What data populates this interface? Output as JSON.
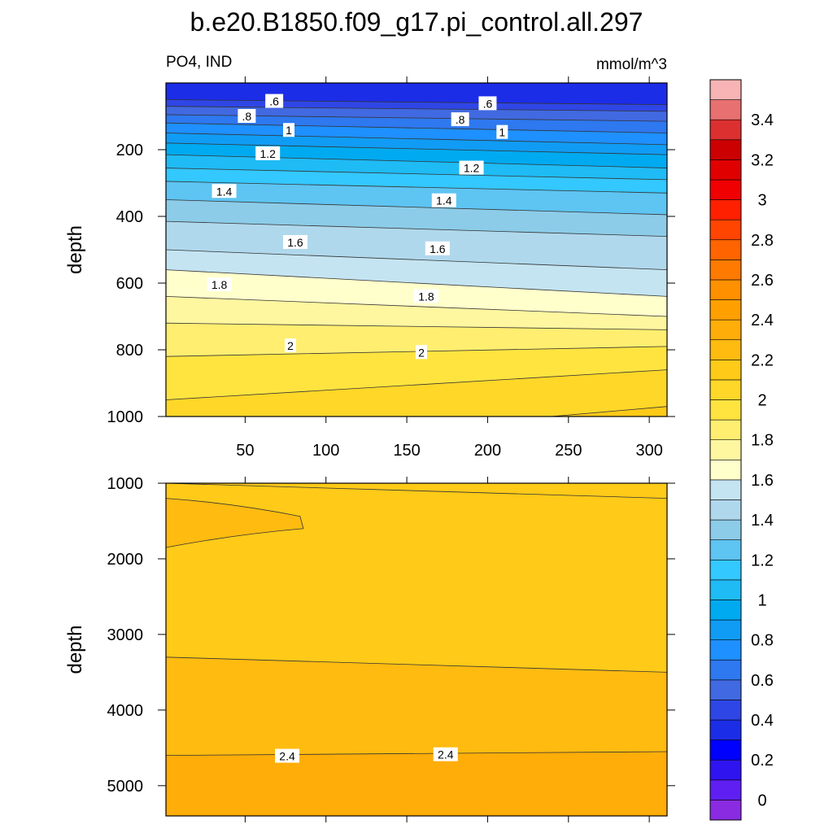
{
  "title": "b.e20.B1850.f09_g17.pi_control.all.297",
  "subtitle_left": "PO4, IND",
  "subtitle_right": "mmol/m^3",
  "colorbar_colors": [
    "#8a2be2",
    "#5f1ff2",
    "#2f14f0",
    "#0000ff",
    "#1c2de8",
    "#2f46e6",
    "#4169e1",
    "#2e78f0",
    "#1e90ff",
    "#109cf5",
    "#00aaf0",
    "#1fbbf5",
    "#33c8ff",
    "#5ec4f2",
    "#8ccce8",
    "#b0d8ec",
    "#c4e4f2",
    "#ffffcc",
    "#fff6a0",
    "#ffee70",
    "#ffe440",
    "#ffd728",
    "#ffca18",
    "#ffbb10",
    "#ffad08",
    "#ffa000",
    "#ff9000",
    "#ff7a00",
    "#ff6400",
    "#ff4500",
    "#ff2000",
    "#f00000",
    "#e00000",
    "#cc0000",
    "#dc3030",
    "#e87070",
    "#f8b4b4"
  ],
  "colorbar_labels": [
    "0",
    "0.2",
    "0.4",
    "0.6",
    "0.8",
    "1",
    "1.2",
    "1.4",
    "1.6",
    "1.8",
    "2",
    "2.2",
    "2.4",
    "2.6",
    "2.8",
    "3",
    "3.2",
    "3.4"
  ],
  "chart_data": [
    {
      "type": "heatmap",
      "panel": "upper",
      "xlabel": "",
      "ylabel": "depth",
      "xlim": [
        1,
        311
      ],
      "ylim": [
        0,
        1000
      ],
      "x_ticks": [
        50,
        100,
        150,
        200,
        250,
        300
      ],
      "x_tick_labels": [
        "50",
        "100",
        "150",
        "200",
        "250",
        "300"
      ],
      "y_ticks": [
        200,
        400,
        600,
        800,
        1000
      ],
      "y_tick_labels": [
        "200",
        "400",
        "600",
        "800",
        "1000"
      ],
      "levels": [
        0.5,
        0.6,
        0.7,
        0.8,
        0.9,
        1.0,
        1.1,
        1.2,
        1.3,
        1.4,
        1.5,
        1.6,
        1.7,
        1.8,
        1.9,
        2.0,
        2.1,
        2.2
      ],
      "contour_depths": {
        "x": [
          1,
          311
        ],
        "depth_left": [
          50,
          70,
          95,
          120,
          150,
          180,
          215,
          255,
          295,
          350,
          415,
          500,
          560,
          640,
          720,
          820,
          950,
          1100
        ],
        "depth_right": [
          65,
          85,
          115,
          150,
          185,
          215,
          255,
          290,
          330,
          395,
          460,
          560,
          640,
          700,
          740,
          790,
          860,
          970
        ]
      },
      "contour_labels": [
        {
          "text": ".6",
          "x": 68,
          "depth": 55
        },
        {
          "text": ".6",
          "x": 200,
          "depth": 62
        },
        {
          "text": ".8",
          "x": 51,
          "depth": 100
        },
        {
          "text": ".8",
          "x": 183,
          "depth": 110
        },
        {
          "text": "1",
          "x": 77,
          "depth": 142
        },
        {
          "text": "1",
          "x": 209,
          "depth": 148
        },
        {
          "text": "1.2",
          "x": 64,
          "depth": 212
        },
        {
          "text": "1.2",
          "x": 190,
          "depth": 255
        },
        {
          "text": "1.4",
          "x": 37,
          "depth": 325
        },
        {
          "text": "1.4",
          "x": 173,
          "depth": 353
        },
        {
          "text": "1.6",
          "x": 81,
          "depth": 478
        },
        {
          "text": "1.6",
          "x": 169,
          "depth": 497
        },
        {
          "text": "1.8",
          "x": 34,
          "depth": 605
        },
        {
          "text": "1.8",
          "x": 162,
          "depth": 640
        },
        {
          "text": "2",
          "x": 78,
          "depth": 788
        },
        {
          "text": "2",
          "x": 159,
          "depth": 808
        }
      ]
    },
    {
      "type": "heatmap",
      "panel": "lower",
      "xlabel": "",
      "ylabel": "depth",
      "xlim": [
        1,
        311
      ],
      "ylim": [
        1000,
        5400
      ],
      "y_ticks": [
        1000,
        2000,
        3000,
        4000,
        5000
      ],
      "y_tick_labels": [
        "1000",
        "2000",
        "3000",
        "4000",
        "5000"
      ],
      "background_level": 2.2,
      "bands": [
        {
          "level": 2.3,
          "depth_left": 3300,
          "depth_right": 3500,
          "until": 4600
        },
        {
          "level": 2.4,
          "depth_left": 4600,
          "depth_right": 4550,
          "until": 5400
        }
      ],
      "contour_lines": [
        {
          "level": 2.2,
          "depth_left": 1000,
          "depth_right": 1200
        },
        {
          "level": 2.3,
          "depth_left": 3300,
          "depth_right": 3500
        },
        {
          "level": 2.4,
          "depth_left": 4600,
          "depth_right": 4550
        }
      ],
      "core": {
        "level": 2.3,
        "depth_top": 1200,
        "depth_bottom": 1850,
        "x_tip": 86,
        "depth_tip": 1600
      },
      "contour_labels": [
        {
          "text": "2.4",
          "x": 76,
          "depth": 4610
        },
        {
          "text": "2.4",
          "x": 174,
          "depth": 4590
        }
      ]
    }
  ]
}
